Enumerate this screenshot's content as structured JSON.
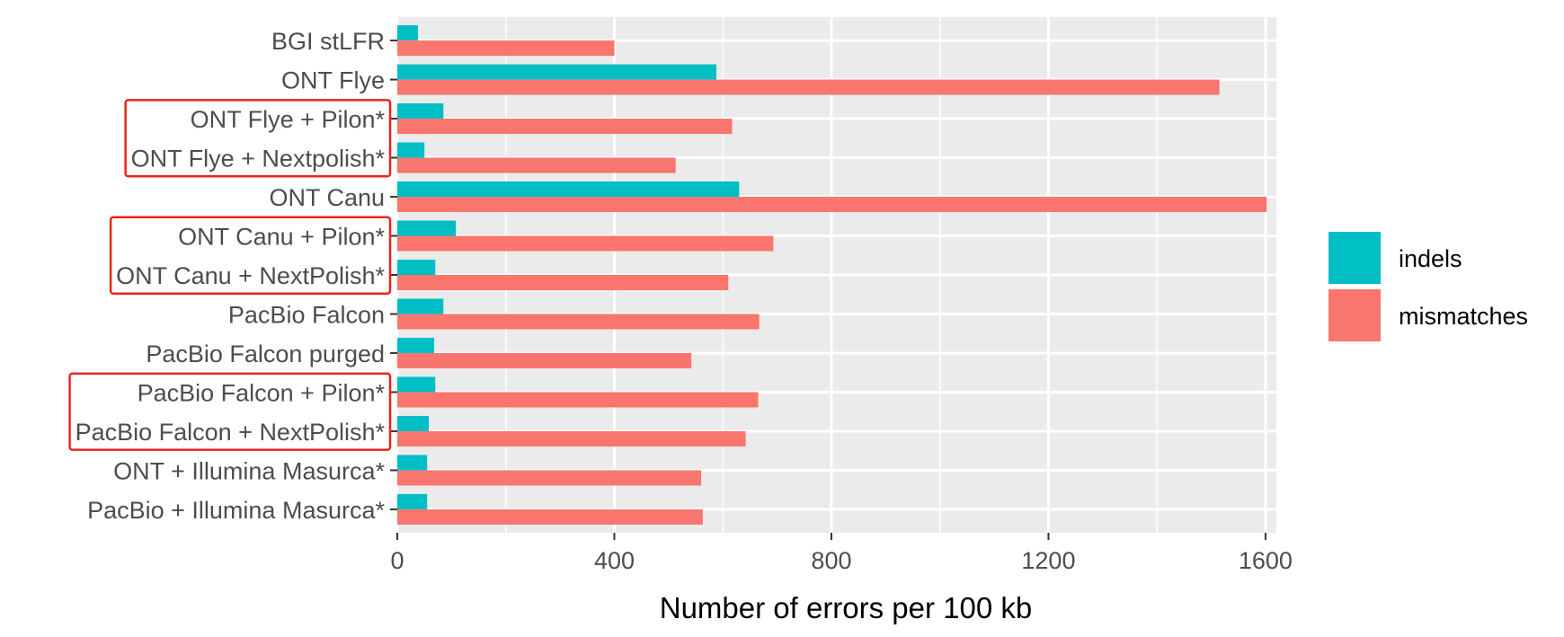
{
  "chart_data": {
    "type": "bar",
    "orientation": "horizontal",
    "title": "",
    "xlabel": "Number of errors per 100 kb",
    "ylabel": "",
    "xlim": [
      0,
      1620
    ],
    "xticks": [
      0,
      400,
      800,
      1200,
      1600
    ],
    "grid": true,
    "legend_position": "right",
    "categories": [
      "BGI stLFR",
      "ONT Flye",
      "ONT Flye + Pilon*",
      "ONT Flye + Nextpolish*",
      "ONT Canu",
      "ONT Canu + Pilon*",
      "ONT Canu + NextPolish*",
      "PacBio Falcon",
      "PacBio Falcon purged",
      "PacBio Falcon + Pilon*",
      "PacBio Falcon + NextPolish*",
      "ONT + Illumina Masurca*",
      "PacBio + Illumina Masurca*"
    ],
    "series": [
      {
        "name": "indels",
        "color": "#00bfc4",
        "values": [
          38,
          588,
          85,
          50,
          630,
          108,
          70,
          85,
          68,
          70,
          58,
          55,
          55
        ]
      },
      {
        "name": "mismatches",
        "color": "#f8766d",
        "values": [
          400,
          1515,
          617,
          513,
          1602,
          693,
          610,
          667,
          542,
          665,
          642,
          560,
          563
        ]
      }
    ],
    "highlighted_groups": [
      [
        "ONT Flye + Pilon*",
        "ONT Flye + Nextpolish*"
      ],
      [
        "ONT Canu + Pilon*",
        "ONT Canu + NextPolish*"
      ],
      [
        "PacBio Falcon + Pilon*",
        "PacBio Falcon + NextPolish*"
      ]
    ],
    "highlight_color": "#e8241c"
  },
  "legend": {
    "items": [
      {
        "label": "indels",
        "color": "#00bfc4"
      },
      {
        "label": "mismatches",
        "color": "#f8766d"
      }
    ]
  }
}
